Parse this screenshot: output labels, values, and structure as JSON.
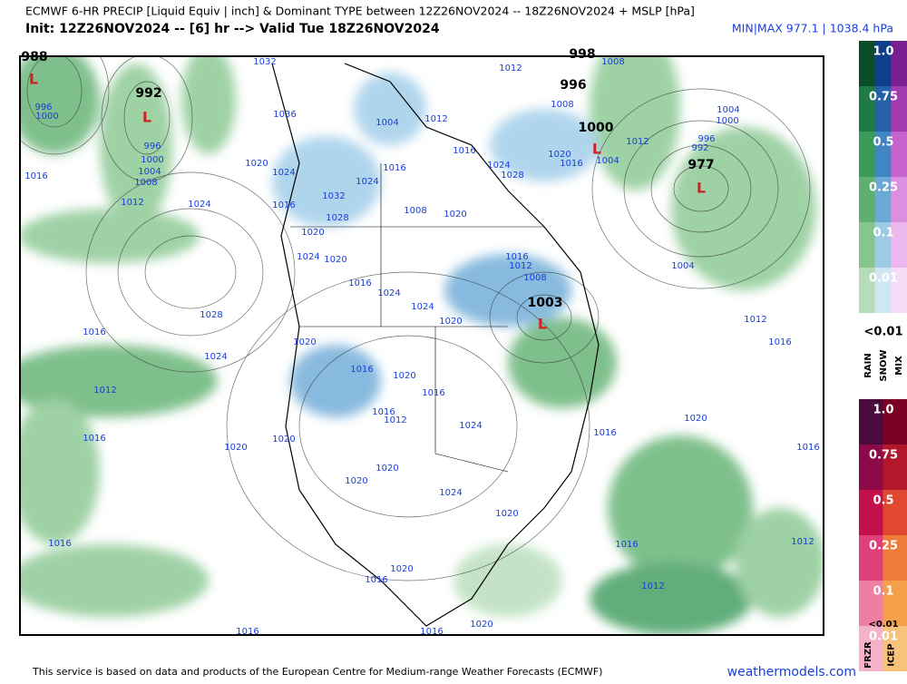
{
  "header": {
    "title": "ECMWF 6-HR PRECIP [Liquid Equiv | inch] & Dominant TYPE between 12Z26NOV2024 -- 18Z26NOV2024 + MSLP [hPa]",
    "subtitle": "Init: 12Z26NOV2024 -- [6] hr --> Valid Tue 18Z26NOV2024",
    "minmax": "MIN|MAX 977.1 | 1038.4 hPa"
  },
  "map": {
    "low_symbol": "L",
    "centers": [
      "988",
      "992",
      "998",
      "996",
      "1000",
      "977",
      "1003"
    ],
    "isobar_labels": [
      "1032",
      "1036",
      "1020",
      "1024",
      "1016",
      "1032",
      "1028",
      "1020",
      "1024",
      "1020",
      "1016",
      "1024",
      "1024",
      "1020",
      "1004",
      "1012",
      "1016",
      "1024",
      "1008",
      "1020",
      "1016",
      "1024",
      "1028",
      "1020",
      "1016",
      "1012",
      "1008",
      "1008",
      "1012",
      "1004",
      "1004",
      "1000",
      "996",
      "992",
      "1004",
      "1012",
      "1016",
      "1016",
      "1012",
      "1008",
      "1020",
      "1016",
      "1020",
      "1016",
      "1016",
      "1012",
      "1024",
      "1020",
      "1020",
      "1020",
      "1020",
      "1024",
      "1020",
      "1016",
      "1020",
      "1016",
      "1016",
      "1012",
      "1012",
      "1016",
      "1016",
      "1020",
      "1016",
      "1016",
      "1020",
      "1016",
      "1012",
      "1024",
      "1028",
      "1016",
      "1024",
      "1012",
      "1016",
      "1000",
      "996",
      "996",
      "1000",
      "1004",
      "1008"
    ]
  },
  "legend": {
    "rain_snow_mix": {
      "levels": [
        "1.0",
        "0.75",
        "0.5",
        "0.25",
        "0.1",
        "0.01"
      ],
      "below": "<0.01",
      "types": [
        "RAIN",
        "SNOW",
        "MIX"
      ]
    },
    "frzr_icep": {
      "levels": [
        "1.0",
        "0.75",
        "0.5",
        "0.25",
        "0.1",
        "0.01"
      ],
      "below": "<0.01",
      "types": [
        "FRZR",
        "ICEP"
      ]
    }
  },
  "footer": {
    "credit": "This service is based on data and products of the European Centre for Medium-range Weather Forecasts (ECMWF)",
    "site": "weathermodels.com"
  }
}
